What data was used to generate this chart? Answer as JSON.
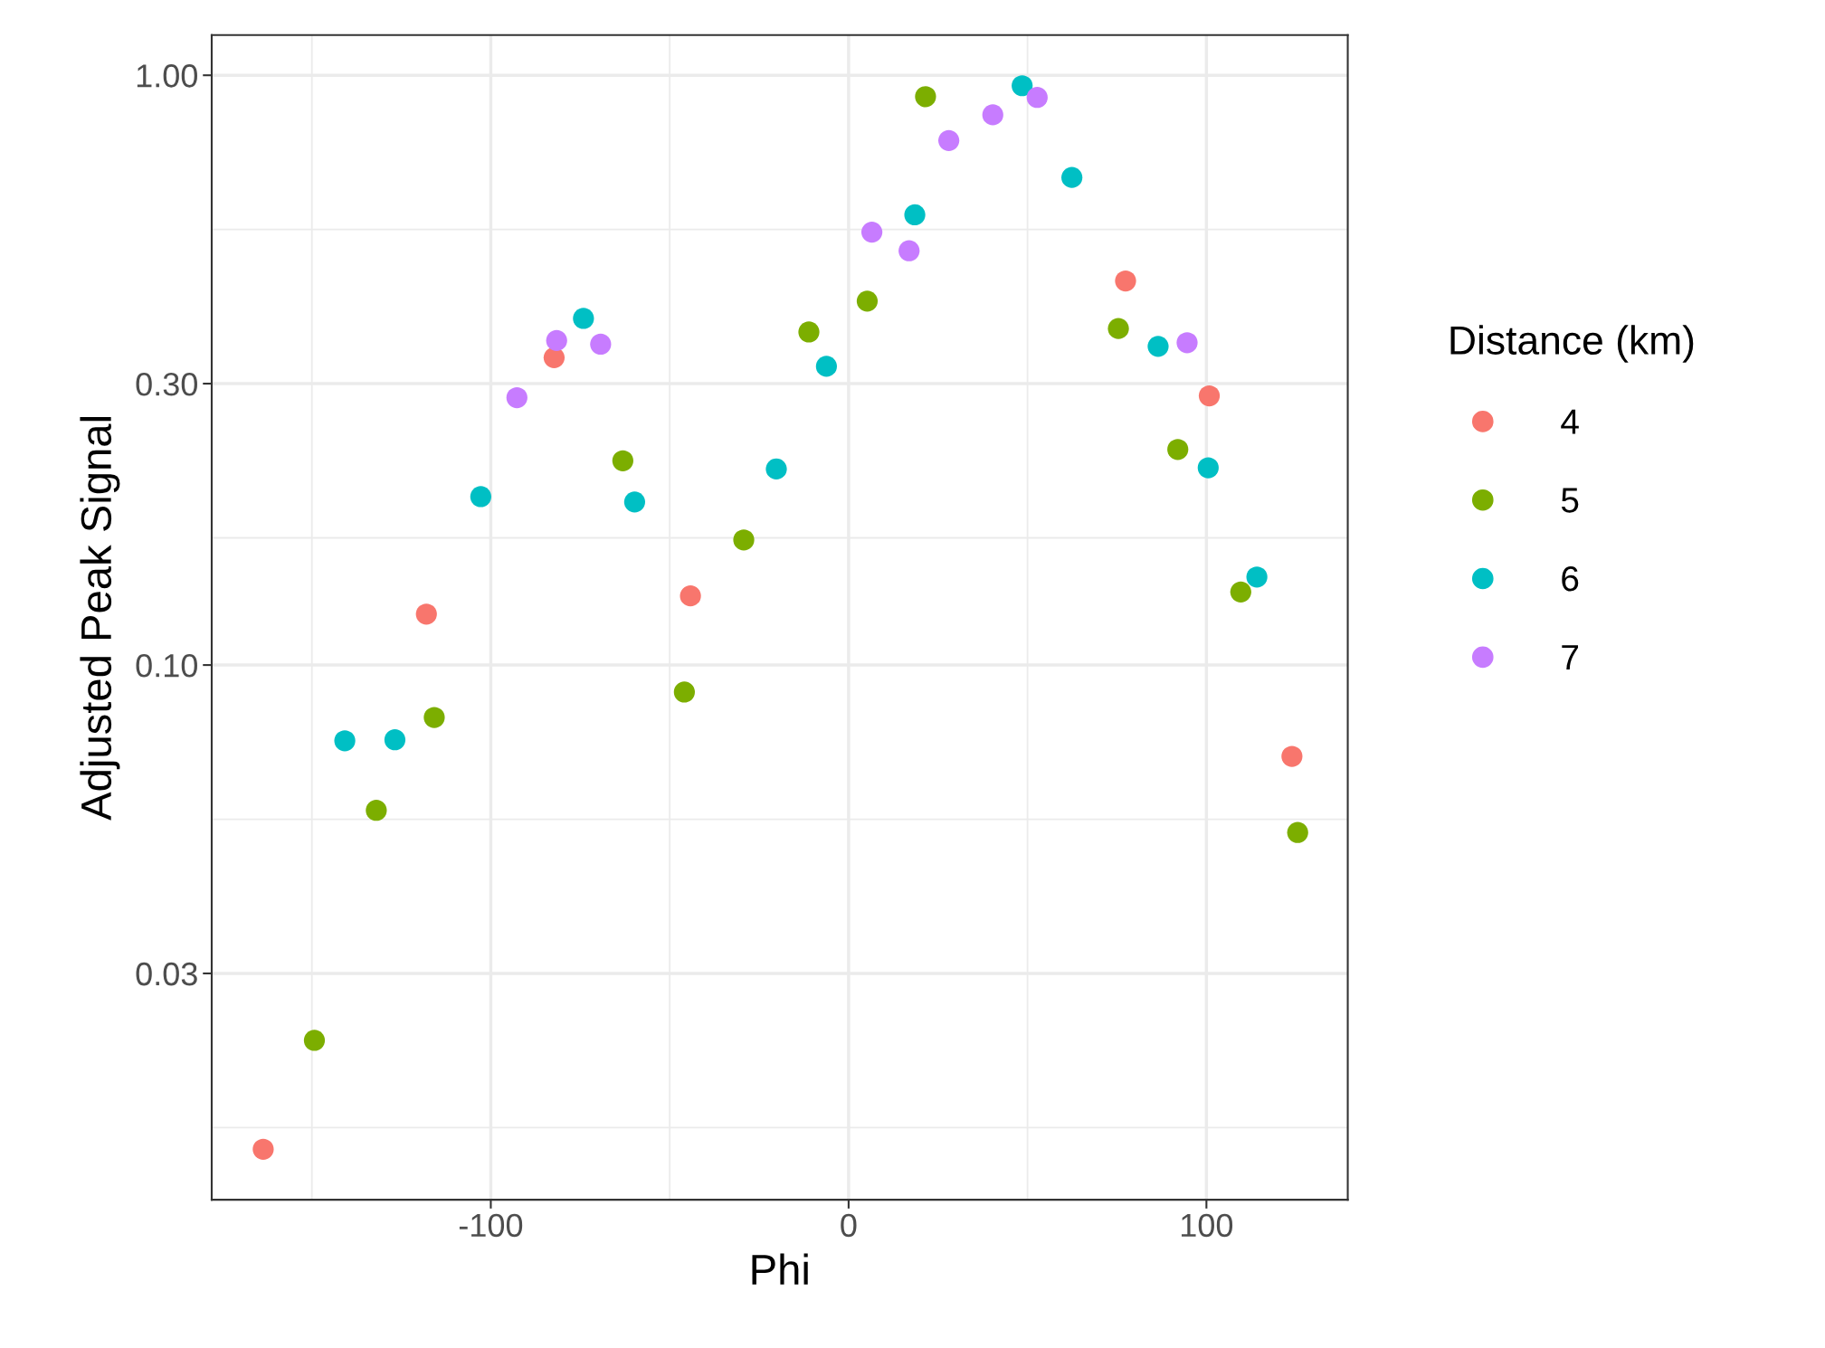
{
  "chart_data": {
    "type": "scatter",
    "xlabel": "Phi",
    "ylabel": "Adjusted Peak Signal",
    "legend_title": "Distance (km)",
    "log": "y",
    "grid": true,
    "legend": "right",
    "marker": "circle",
    "xlim": [
      -178,
      139.5
    ],
    "ylim": [
      0.0124,
      1.17
    ],
    "xticks": [
      -100,
      0,
      100
    ],
    "yticks": [
      {
        "value": 0.03,
        "label": "0.03"
      },
      {
        "value": 0.1,
        "label": "0.10"
      },
      {
        "value": 0.3,
        "label": "0.30"
      },
      {
        "value": 1,
        "label": "1.00"
      }
    ],
    "series": [
      {
        "name": "4",
        "color": "#f8766d",
        "x": [
          -163.6,
          -118.0,
          -82.3,
          -44.2,
          77.4,
          100.8,
          123.9
        ],
        "values": [
          0.0151,
          0.122,
          0.332,
          0.131,
          0.448,
          0.286,
          0.07
        ]
      },
      {
        "name": "5",
        "color": "#7cae00",
        "x": [
          -149.3,
          -132.0,
          -115.8,
          -63.1,
          -45.9,
          -29.3,
          -11.1,
          5.2,
          21.5,
          75.4,
          92.0,
          109.6,
          125.5
        ],
        "values": [
          0.0231,
          0.0567,
          0.0815,
          0.222,
          0.09,
          0.163,
          0.367,
          0.414,
          0.92,
          0.372,
          0.232,
          0.133,
          0.052
        ]
      },
      {
        "name": "6",
        "color": "#00bfc4",
        "x": [
          -140.8,
          -126.8,
          -102.8,
          -74.1,
          -59.8,
          -20.2,
          -6.2,
          18.5,
          48.5,
          62.4,
          86.5,
          100.5,
          114.1
        ],
        "values": [
          0.0744,
          0.0747,
          0.193,
          0.387,
          0.189,
          0.215,
          0.321,
          0.58,
          0.96,
          0.671,
          0.347,
          0.216,
          0.141
        ]
      },
      {
        "name": "7",
        "color": "#c77cff",
        "x": [
          -92.7,
          -81.6,
          -69.3,
          6.5,
          16.9,
          28.0,
          40.3,
          52.7,
          94.6
        ],
        "values": [
          0.284,
          0.355,
          0.35,
          0.542,
          0.504,
          0.775,
          0.857,
          0.917,
          0.352
        ]
      }
    ]
  }
}
